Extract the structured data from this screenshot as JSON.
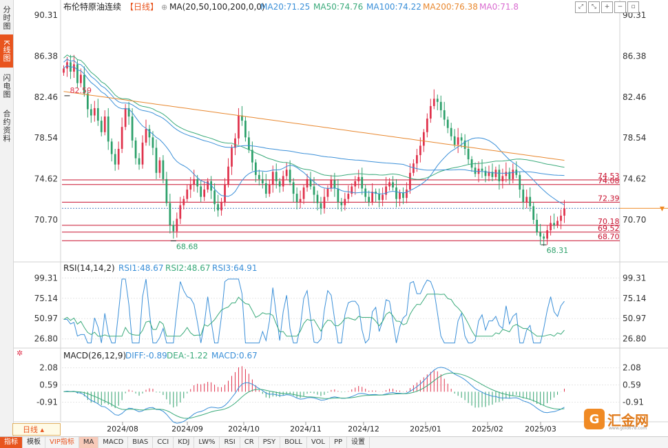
{
  "sidebar": {
    "tabs": [
      {
        "label": "分时图",
        "active": false
      },
      {
        "label": "K线图",
        "active": true
      },
      {
        "label": "闪电图",
        "active": false
      },
      {
        "label": "合约资料",
        "active": false
      }
    ]
  },
  "header": {
    "instrument": "布伦特原油连续",
    "period_tag": "【日线】",
    "ma_label": "MA(20,50,100,200,0,0)",
    "ma_values": [
      {
        "label": "MA20:71.25",
        "color": "#3a8fd8"
      },
      {
        "label": "MA50:74.76",
        "color": "#3aaa7a"
      },
      {
        "label": "MA100:74.22",
        "color": "#3a8fd8"
      },
      {
        "label": "MA200:76.38",
        "color": "#e8872e"
      },
      {
        "label": "MA0:71.8",
        "color": "#d96bd0"
      }
    ]
  },
  "toolbar_icons": [
    "expand-icon",
    "collapse-icon",
    "zoom-in-icon",
    "zoom-out-icon",
    "window-icon"
  ],
  "period_tab": {
    "label": "日线"
  },
  "bottom_toolbar": [
    {
      "label": "指标",
      "state": "active"
    },
    {
      "label": "模板",
      "state": ""
    },
    {
      "label": "VIP指标",
      "state": "vip"
    },
    {
      "label": "MA",
      "state": "sel"
    },
    {
      "label": "MACD",
      "state": ""
    },
    {
      "label": "BIAS",
      "state": ""
    },
    {
      "label": "CCI",
      "state": ""
    },
    {
      "label": "KDJ",
      "state": ""
    },
    {
      "label": "LW%",
      "state": ""
    },
    {
      "label": "RSI",
      "state": ""
    },
    {
      "label": "CR",
      "state": ""
    },
    {
      "label": "PSY",
      "state": ""
    },
    {
      "label": "BOLL",
      "state": ""
    },
    {
      "label": "VOL",
      "state": ""
    },
    {
      "label": "PP",
      "state": ""
    },
    {
      "label": "设置",
      "state": ""
    }
  ],
  "logo": {
    "text": "汇金网",
    "sub": "www.gold678.com"
  },
  "chart_data": [
    {
      "type": "candlestick",
      "ylim": [
        66.8,
        90.31
      ],
      "yticks": [
        "90.31",
        "86.38",
        "82.46",
        "78.54",
        "74.62",
        "70.70"
      ],
      "x_tick_labels": [
        "2024/08",
        "2024/09",
        "2024/10",
        "2024/11",
        "2024/12",
        "2025/01",
        "2025/02",
        "2025/03"
      ],
      "annotations": [
        {
          "text": "82.59",
          "value": 82.59,
          "kind": "high"
        },
        {
          "text": "68.68",
          "value": 68.68,
          "kind": "low"
        },
        {
          "text": "68.31",
          "value": 68.31,
          "kind": "low"
        }
      ],
      "horizontal_lines": [
        {
          "label": "74.53",
          "value": 74.53
        },
        {
          "label": "74.08",
          "value": 74.08
        },
        {
          "label": "72.39",
          "value": 72.39
        },
        {
          "label": "70.18",
          "value": 70.18
        },
        {
          "label": "69.52",
          "value": 69.52
        },
        {
          "label": "68.70",
          "value": 68.7
        }
      ],
      "current_price": 71.8,
      "closes": [
        85.2,
        85.8,
        84.9,
        85.6,
        83.8,
        84.6,
        82.8,
        81.3,
        80.7,
        81.4,
        80.2,
        79.1,
        80.6,
        78.2,
        77.0,
        76.0,
        77.5,
        79.6,
        81.4,
        80.6,
        78.3,
        76.6,
        76.0,
        78.1,
        79.4,
        78.6,
        77.6,
        75.2,
        76.4,
        74.6,
        72.3,
        70.2,
        69.6,
        70.8,
        72.1,
        72.7,
        73.6,
        74.1,
        74.6,
        73.9,
        72.9,
        73.6,
        74.4,
        73.5,
        72.2,
        71.6,
        72.4,
        74.1,
        75.8,
        77.6,
        78.5,
        80.7,
        80.2,
        78.6,
        77.4,
        76.2,
        75.0,
        74.6,
        74.2,
        73.2,
        74.1,
        75.3,
        74.4,
        73.9,
        74.9,
        75.5,
        74.3,
        73.2,
        72.4,
        72.7,
        73.8,
        74.6,
        73.9,
        73.1,
        72.3,
        71.8,
        72.9,
        73.7,
        74.5,
        73.7,
        72.4,
        72.1,
        72.7,
        73.2,
        73.9,
        74.4,
        74.8,
        73.7,
        72.9,
        72.4,
        73.4,
        73.2,
        72.6,
        73.1,
        73.9,
        74.3,
        73.8,
        72.7,
        73.3,
        72.8,
        73.6,
        75.2,
        76.1,
        76.9,
        77.8,
        79.1,
        80.4,
        81.6,
        82.3,
        82.0,
        81.2,
        80.3,
        79.5,
        78.7,
        77.9,
        78.6,
        78.3,
        77.5,
        76.5,
        75.7,
        75.1,
        75.6,
        75.4,
        74.9,
        75.3,
        74.8,
        75.5,
        74.4,
        74.9,
        75.3,
        74.6,
        75.5,
        75.0,
        73.6,
        72.4,
        72.9,
        72.0,
        70.7,
        69.5,
        69.1,
        68.9,
        69.7,
        70.4,
        70.2,
        70.6,
        71.1,
        71.8
      ]
    },
    {
      "type": "line",
      "title": "RSI(14,14,2)",
      "series": [
        {
          "name": "RSI1:48.67",
          "color": "#3a8fd8"
        },
        {
          "name": "RSI2:48.67",
          "color": "#3aaa7a"
        },
        {
          "name": "RSI3:64.91",
          "color": "#3a8fd8"
        }
      ],
      "yticks": [
        "99.31",
        "75.14",
        "50.97",
        "26.80"
      ],
      "ylim": [
        20,
        102
      ]
    },
    {
      "type": "bar",
      "title": "MACD(26,12,9)",
      "series": [
        {
          "name": "DIFF:-0.89",
          "color": "#3a8fd8"
        },
        {
          "name": "DEA:-1.22",
          "color": "#3aaa7a"
        },
        {
          "name": "MACD:0.67",
          "color": "#3a8fd8"
        }
      ],
      "yticks": [
        "2.08",
        "0.59",
        "-0.91"
      ],
      "ylim": [
        -2.2,
        2.6
      ]
    }
  ]
}
